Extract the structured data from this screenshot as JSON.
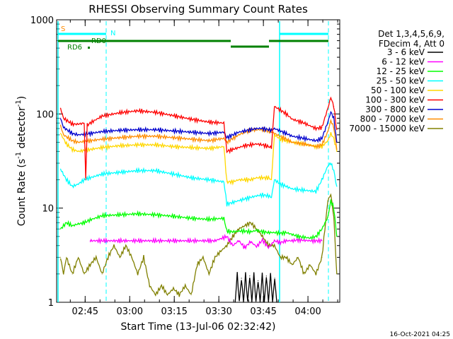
{
  "chart_data": {
    "type": "line",
    "title": "RHESSI Observing Summary Count Rates",
    "xlabel": "Start Time (13-Jul-06 02:32:42)",
    "ylabel_pre": "Count Rate (s",
    "ylabel_exp": "-1",
    "ylabel_post": " detector",
    "ylabel_close": ")",
    "yscale": "log",
    "ylim": [
      1,
      1000
    ],
    "xlim_minutes": [
      2.7,
      98
    ],
    "x_tick_labels": [
      {
        "minute": 12.3,
        "label": "02:45"
      },
      {
        "minute": 27.3,
        "label": "03:00"
      },
      {
        "minute": 42.3,
        "label": "03:15"
      },
      {
        "minute": 57.3,
        "label": "03:30"
      },
      {
        "minute": 72.3,
        "label": "03:45"
      },
      {
        "minute": 87.3,
        "label": "04:00"
      }
    ],
    "y_tick_labels": [
      {
        "value": 1,
        "label": "1"
      },
      {
        "value": 10,
        "label": "10"
      },
      {
        "value": 100,
        "label": "100"
      },
      {
        "value": 1000,
        "label": "1000"
      }
    ],
    "legend": {
      "header1": "Det 1,3,4,5,6,9,",
      "header2": "FDecim 4, Att 0"
    },
    "series": [
      {
        "name": "3 - 6 keV",
        "color": "#000000",
        "x": [
          62.8,
          63.5,
          64.2,
          64.9,
          65.6,
          66.3,
          67,
          67.7,
          68.4,
          69.1,
          69.8,
          70.5,
          71.2,
          71.9,
          72.6,
          73.3,
          74,
          74.7,
          75.4,
          76.1,
          76.8
        ],
        "values": [
          1,
          2,
          1,
          1.8,
          1,
          2,
          1,
          1.9,
          1,
          2,
          1,
          1.7,
          1,
          2,
          1,
          1.9,
          1,
          2,
          1,
          1.8,
          1
        ]
      },
      {
        "name": "6 - 12 keV",
        "color": "#ff00ff",
        "x": [
          14,
          20,
          26,
          32,
          38,
          44,
          50,
          56,
          60,
          62,
          64,
          66,
          68,
          70,
          72,
          74,
          76,
          78,
          80,
          82,
          84,
          88,
          90,
          92
        ],
        "values": [
          4.5,
          4.5,
          4.5,
          4.5,
          4.5,
          4.5,
          4.5,
          4.5,
          5,
          4,
          4.5,
          3.8,
          4.4,
          3.9,
          4.6,
          3.8,
          4.5,
          4.3,
          4.5,
          4.5,
          4.6,
          4.5,
          4.5,
          4.5
        ]
      },
      {
        "name": "12 - 25 keV",
        "color": "#00ff00",
        "x": [
          4,
          6,
          8,
          10,
          12,
          14,
          18,
          24,
          30,
          36,
          42,
          48,
          54,
          59,
          60,
          62,
          64,
          66,
          68,
          70,
          72,
          74,
          75,
          76,
          78,
          80,
          84,
          88,
          90,
          92,
          94,
          95,
          96,
          97
        ],
        "values": [
          6,
          7,
          6.5,
          6.8,
          7,
          7.5,
          8.3,
          8.5,
          8.7,
          8.5,
          8.2,
          7.8,
          7.6,
          7.8,
          5.7,
          5.6,
          5.7,
          5.7,
          5.6,
          5.8,
          5.6,
          5.5,
          5.5,
          5.5,
          5.4,
          5.5,
          5,
          4.8,
          5,
          6,
          8,
          12,
          10,
          5
        ]
      },
      {
        "name": "25 - 50 keV",
        "color": "#00ffff",
        "x": [
          4,
          6,
          8,
          10,
          12,
          14,
          18,
          24,
          30,
          36,
          42,
          48,
          54,
          59,
          60,
          62,
          64,
          66,
          68,
          70,
          72,
          74,
          75,
          76,
          78,
          80,
          82,
          86,
          90,
          92,
          94,
          95,
          96,
          97
        ],
        "values": [
          26,
          20,
          17,
          18,
          20,
          21,
          23,
          24,
          25,
          25,
          23,
          21,
          20,
          19,
          11,
          11.5,
          12,
          12.5,
          13,
          13.5,
          13.8,
          13.5,
          13,
          20,
          18,
          17,
          16,
          15.5,
          15,
          20,
          28,
          30,
          25,
          17
        ]
      },
      {
        "name": "50 - 100 keV",
        "color": "#ffd700",
        "x": [
          4,
          6,
          8,
          10,
          12,
          14,
          18,
          24,
          30,
          36,
          42,
          48,
          54,
          59,
          60,
          62,
          64,
          66,
          68,
          70,
          72,
          74,
          75,
          76,
          78,
          80,
          82,
          86,
          90,
          92,
          94,
          95,
          96,
          97
        ],
        "values": [
          62,
          48,
          42,
          40,
          41,
          42,
          44,
          46,
          47,
          47,
          45,
          44,
          43,
          45,
          19,
          19,
          20,
          20,
          20,
          21,
          21,
          21,
          20,
          60,
          54,
          52,
          50,
          48,
          45,
          45,
          52,
          62,
          55,
          40
        ]
      },
      {
        "name": "100 - 300 keV",
        "color": "#ff0000",
        "x": [
          4,
          5,
          8,
          10,
          12,
          12.5,
          13,
          14,
          18,
          24,
          30,
          36,
          42,
          48,
          54,
          59,
          60,
          62,
          64,
          66,
          68,
          70,
          72,
          74,
          75,
          76,
          78,
          80,
          82,
          86,
          90,
          92,
          94,
          95,
          96,
          97
        ],
        "values": [
          115,
          90,
          78,
          78,
          80,
          20,
          76,
          80,
          95,
          103,
          108,
          104,
          96,
          88,
          82,
          80,
          40,
          42,
          44,
          46,
          47,
          48,
          47,
          45,
          44,
          120,
          110,
          100,
          88,
          80,
          70,
          72,
          115,
          150,
          120,
          68
        ]
      },
      {
        "name": "300 - 800 keV",
        "color": "#0000cd",
        "x": [
          4,
          5,
          8,
          10,
          12,
          14,
          18,
          24,
          30,
          36,
          42,
          48,
          54,
          59,
          60,
          62,
          64,
          66,
          68,
          70,
          72,
          74,
          75,
          76,
          78,
          80,
          82,
          86,
          90,
          92,
          94,
          95,
          96,
          97
        ],
        "values": [
          90,
          72,
          62,
          60,
          61,
          62,
          65,
          67,
          68,
          68,
          66,
          64,
          62,
          64,
          56,
          60,
          64,
          66,
          68,
          70,
          70,
          68,
          67,
          70,
          66,
          62,
          58,
          55,
          52,
          55,
          82,
          105,
          90,
          50
        ]
      },
      {
        "name": "800 - 7000 keV",
        "color": "#ff8c00",
        "x": [
          4,
          5,
          8,
          10,
          12,
          14,
          18,
          24,
          30,
          36,
          42,
          48,
          54,
          59,
          60,
          62,
          64,
          66,
          68,
          70,
          72,
          74,
          75,
          76,
          78,
          80,
          82,
          86,
          90,
          92,
          94,
          95,
          96,
          97
        ],
        "values": [
          75,
          60,
          52,
          50,
          51,
          52,
          54,
          56,
          58,
          58,
          56,
          54,
          52,
          55,
          50,
          55,
          60,
          64,
          67,
          68,
          68,
          66,
          65,
          62,
          58,
          54,
          50,
          48,
          45,
          47,
          65,
          85,
          72,
          42
        ]
      },
      {
        "name": "7000 - 15000 keV",
        "color": "#808000",
        "x": [
          4,
          5,
          6,
          8,
          10,
          12,
          14,
          16,
          18,
          20,
          22,
          24,
          26,
          28,
          30,
          32,
          34,
          36,
          38,
          40,
          42,
          44,
          46,
          48,
          50,
          52,
          54,
          56,
          58,
          60,
          62,
          64,
          66,
          68,
          70,
          72,
          74,
          76,
          78,
          80,
          82,
          84,
          86,
          88,
          90,
          92,
          93,
          94,
          95,
          96,
          97
        ],
        "values": [
          3,
          2,
          3,
          2,
          3,
          2,
          2.5,
          3,
          2,
          3,
          4,
          3,
          4,
          3,
          2,
          3,
          1.5,
          1.2,
          1.5,
          1.2,
          1.4,
          1.2,
          1.5,
          1.2,
          2.5,
          3,
          2,
          3,
          3.5,
          4,
          5,
          6,
          6.5,
          7,
          6,
          5,
          4,
          4,
          3,
          3,
          2.5,
          3,
          2,
          2.5,
          2,
          3,
          6,
          12,
          14,
          8,
          2
        ]
      }
    ],
    "x_labels": [],
    "annotations": [
      {
        "id": "S",
        "text": "S",
        "color": "#ff8c00"
      },
      {
        "id": "N",
        "text": "N",
        "color": "#00ffff"
      },
      {
        "id": "RD0",
        "text": "RD0",
        "color": "#008000"
      },
      {
        "id": "RD6",
        "text": "RD6",
        "color": "#008000"
      }
    ],
    "footer": "16-Oct-2021 04:25"
  }
}
